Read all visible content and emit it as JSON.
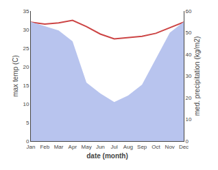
{
  "chart_data": {
    "type": "line",
    "categories": [
      "Jan",
      "Feb",
      "Mar",
      "Apr",
      "May",
      "Jun",
      "Jul",
      "Aug",
      "Sep",
      "Oct",
      "Nov",
      "Dec"
    ],
    "xlabel": "date (month)",
    "ylabel": "max temp (C)",
    "y2label": "med. precipitation (kg/m2)",
    "series": [
      {
        "type": "area",
        "axis": "y2",
        "color": "#b8c4ee",
        "values": [
          55,
          53,
          51,
          46,
          27,
          22,
          18,
          21,
          26,
          38,
          50,
          55
        ]
      },
      {
        "type": "line",
        "color": "#cc4444",
        "values": [
          32.0,
          31.5,
          31.8,
          32.5,
          30.8,
          28.8,
          27.5,
          27.8,
          28.2,
          29.0,
          30.5,
          32.0
        ]
      }
    ],
    "ylim": [
      0,
      35
    ],
    "yticks": [
      0,
      5,
      10,
      15,
      20,
      25,
      30,
      35
    ],
    "y2lim": [
      0,
      60
    ],
    "y2ticks": [
      0,
      10,
      20,
      30,
      40,
      50,
      60
    ],
    "grid": false
  }
}
